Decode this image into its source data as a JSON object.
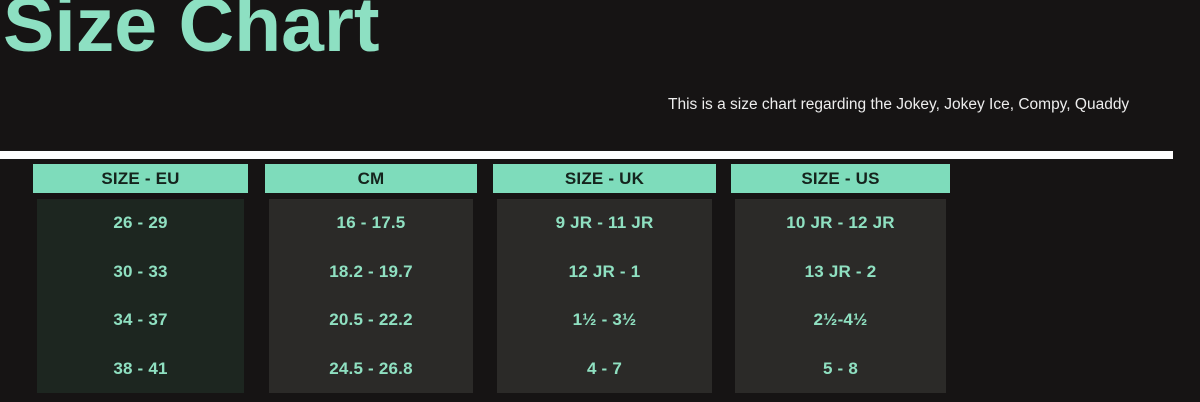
{
  "page": {
    "title": "Size Chart",
    "subtitle": "This is a size chart regarding the Jokey, Jokey Ice, Compy, Quaddy",
    "colors": {
      "background": "#161414",
      "title_text": "#8de0c2",
      "header_fill": "#7edcbb",
      "header_text": "#15241d",
      "body_text": "#8fe0c1",
      "body_fill_eu": "#1d2620",
      "body_fill_other": "#2b2a28",
      "divider": "#fdfdfd",
      "subtitle_text": "#ededed"
    }
  },
  "chart_data": {
    "type": "table",
    "title": "Size Chart",
    "note": "This is a size chart regarding the Jokey, Jokey Ice, Compy, Quaddy",
    "columns": [
      "SIZE - EU",
      "CM",
      "SIZE - UK",
      "SIZE - US"
    ],
    "rows": [
      [
        "26 - 29",
        "16 - 17.5",
        "9 JR - 11 JR",
        "10 JR - 12 JR"
      ],
      [
        "30 - 33",
        "18.2 - 19.7",
        "12 JR - 1",
        "13 JR - 2"
      ],
      [
        "34 - 37",
        "20.5 - 22.2",
        "1½ - 3½",
        "2½-4½"
      ],
      [
        "38 - 41",
        "24.5 - 26.8",
        "4 - 7",
        "5 - 8"
      ]
    ]
  }
}
